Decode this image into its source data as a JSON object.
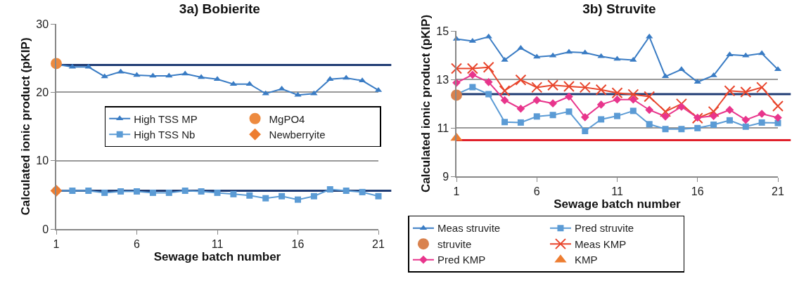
{
  "chart_data": [
    {
      "type": "line",
      "title": "3a) Bobierite",
      "xlabel": "Sewage batch number",
      "ylabel": "Calculated ionic product (pKIP)",
      "x": [
        1,
        2,
        3,
        4,
        5,
        6,
        7,
        8,
        9,
        10,
        11,
        12,
        13,
        14,
        15,
        16,
        17,
        18,
        19,
        20,
        21
      ],
      "xlim": [
        1,
        21
      ],
      "xticks": [
        1,
        6,
        11,
        16,
        21
      ],
      "ylim": [
        0,
        30
      ],
      "yticks": [
        0,
        10,
        20,
        30
      ],
      "grid": "y",
      "legend": "center",
      "series": [
        {
          "name": "High TSS MP",
          "color": "#3a7cc4",
          "marker": "triangle",
          "values": [
            24.1,
            23.7,
            23.7,
            22.3,
            23.0,
            22.5,
            22.4,
            22.4,
            22.7,
            22.2,
            21.9,
            21.2,
            21.2,
            19.8,
            20.5,
            19.6,
            19.8,
            21.9,
            22.1,
            21.7,
            20.3
          ]
        },
        {
          "name": "MgPO4",
          "type": "scatter",
          "color": "#ed8a3f",
          "marker": "circle",
          "values": [
            24.2,
            null,
            null,
            null,
            null,
            null,
            null,
            null,
            null,
            null,
            null,
            null,
            null,
            null,
            null,
            null,
            null,
            null,
            null,
            null,
            null
          ]
        },
        {
          "name": "High TSS Nb",
          "color": "#5b9bd5",
          "marker": "square",
          "values": [
            5.6,
            5.6,
            5.6,
            5.3,
            5.5,
            5.5,
            5.3,
            5.3,
            5.6,
            5.5,
            5.3,
            5.1,
            4.9,
            4.5,
            4.8,
            4.3,
            4.8,
            5.8,
            5.6,
            5.4,
            4.8
          ]
        },
        {
          "name": "Newberryite",
          "type": "scatter",
          "color": "#ed7d31",
          "marker": "diamond",
          "values": [
            5.6,
            null,
            null,
            null,
            null,
            null,
            null,
            null,
            null,
            null,
            null,
            null,
            null,
            null,
            null,
            null,
            null,
            null,
            null,
            null,
            null
          ]
        }
      ],
      "ref_lines": [
        {
          "axis": "y",
          "value": 24.0,
          "color": "#1f3b73"
        },
        {
          "axis": "y",
          "value": 5.6,
          "color": "#1f3b73"
        }
      ]
    },
    {
      "type": "line",
      "title": "3b) Struvite",
      "xlabel": "Sewage batch number",
      "ylabel": "Calculated ionic product (pKIP)",
      "x": [
        1,
        2,
        3,
        4,
        5,
        6,
        7,
        8,
        9,
        10,
        11,
        12,
        13,
        14,
        15,
        16,
        17,
        18,
        19,
        20,
        21
      ],
      "xlim": [
        1,
        21
      ],
      "xticks": [
        1,
        6,
        11,
        16,
        21
      ],
      "ylim": [
        9,
        15
      ],
      "yticks": [
        9,
        11,
        13,
        15
      ],
      "grid": "y",
      "legend": "bottom",
      "series": [
        {
          "name": "Meas struvite",
          "color": "#3a7cc4",
          "marker": "triangle",
          "values": [
            14.67,
            14.58,
            14.76,
            13.8,
            14.29,
            13.93,
            13.98,
            14.13,
            14.1,
            13.95,
            13.84,
            13.8,
            14.76,
            13.12,
            13.41,
            12.89,
            13.16,
            14.02,
            13.98,
            14.07,
            13.41
          ]
        },
        {
          "name": "Pred struvite",
          "color": "#5b9bd5",
          "marker": "square",
          "values": [
            12.39,
            12.68,
            12.39,
            11.24,
            11.22,
            11.47,
            11.53,
            11.67,
            10.87,
            11.35,
            11.49,
            11.7,
            11.15,
            10.95,
            10.95,
            10.99,
            11.13,
            11.31,
            11.05,
            11.22,
            11.2
          ]
        },
        {
          "name": "struvite",
          "type": "scatter",
          "color": "#d9824e",
          "marker": "circle",
          "values": [
            12.35,
            null,
            null,
            null,
            null,
            null,
            null,
            null,
            null,
            null,
            null,
            null,
            null,
            null,
            null,
            null,
            null,
            null,
            null,
            null,
            null
          ]
        },
        {
          "name": "Meas KMP",
          "color": "#e8452c",
          "marker": "cross",
          "values": [
            13.45,
            13.45,
            13.5,
            12.53,
            12.98,
            12.67,
            12.76,
            12.71,
            12.67,
            12.57,
            12.44,
            12.38,
            12.29,
            11.67,
            11.99,
            11.4,
            11.67,
            12.53,
            12.48,
            12.67,
            11.9
          ]
        },
        {
          "name": "Pred KMP",
          "color": "#e8358c",
          "marker": "diamond",
          "values": [
            12.86,
            13.19,
            12.89,
            12.14,
            11.79,
            12.14,
            12.01,
            12.29,
            11.44,
            11.96,
            12.17,
            12.17,
            11.74,
            11.47,
            11.87,
            11.42,
            11.49,
            11.74,
            11.33,
            11.58,
            11.42
          ]
        },
        {
          "name": "KMP",
          "type": "scatter",
          "color": "#ed7d31",
          "marker": "triangle",
          "values": [
            10.58,
            null,
            null,
            null,
            null,
            null,
            null,
            null,
            null,
            null,
            null,
            null,
            null,
            null,
            null,
            null,
            null,
            null,
            null,
            null,
            null
          ]
        }
      ],
      "ref_lines": [
        {
          "axis": "y",
          "value": 12.39,
          "color": "#1f3b73"
        },
        {
          "axis": "y",
          "value": 10.49,
          "color": "#e0202a"
        }
      ]
    }
  ]
}
